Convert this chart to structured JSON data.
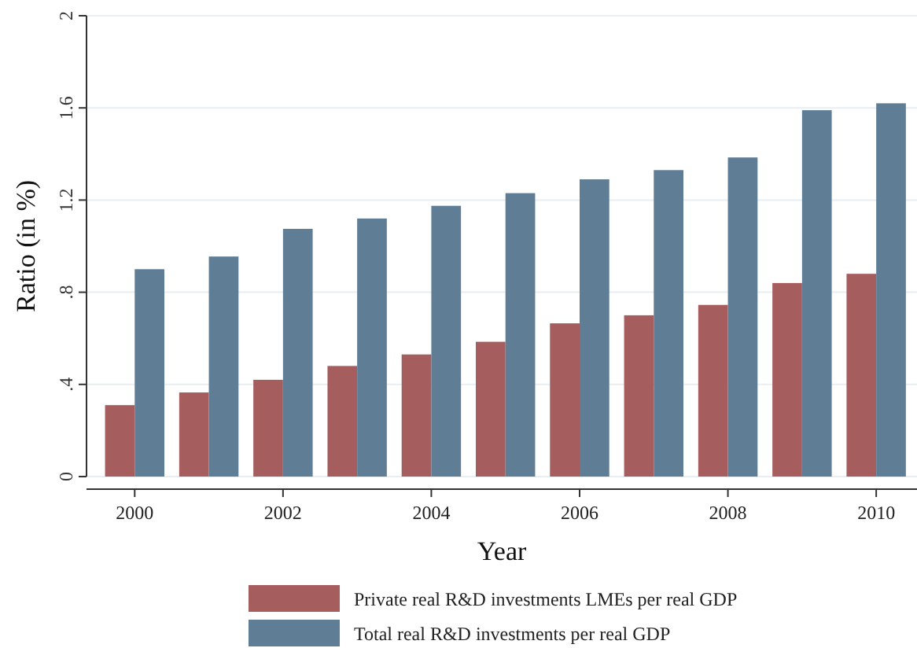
{
  "chart_data": {
    "type": "bar",
    "xlabel": "Year",
    "ylabel": "Ratio (in %)",
    "x": [
      2000,
      2001,
      2002,
      2003,
      2004,
      2005,
      2006,
      2007,
      2008,
      2009,
      2010
    ],
    "series": [
      {
        "name": "Private real R&D investments LMEs per real GDP",
        "color": "#a65d5e",
        "values": [
          0.31,
          0.365,
          0.42,
          0.48,
          0.53,
          0.585,
          0.665,
          0.7,
          0.745,
          0.84,
          0.88
        ]
      },
      {
        "name": "Total real R&D investments per real GDP",
        "color": "#5f7d95",
        "values": [
          0.9,
          0.955,
          1.075,
          1.12,
          1.175,
          1.23,
          1.29,
          1.33,
          1.385,
          1.59,
          1.62
        ]
      }
    ],
    "xlim": [
      1999.35,
      2010.55
    ],
    "xticks": [
      2000,
      2002,
      2004,
      2006,
      2008,
      2010
    ],
    "ylim": [
      0,
      2
    ],
    "yticks": [
      0,
      {
        "value": 0.4,
        "label": ".4"
      },
      {
        "value": 0.8,
        "label": ".8"
      },
      1.2,
      1.6,
      2
    ],
    "grid": "y",
    "legend": "bottom"
  }
}
